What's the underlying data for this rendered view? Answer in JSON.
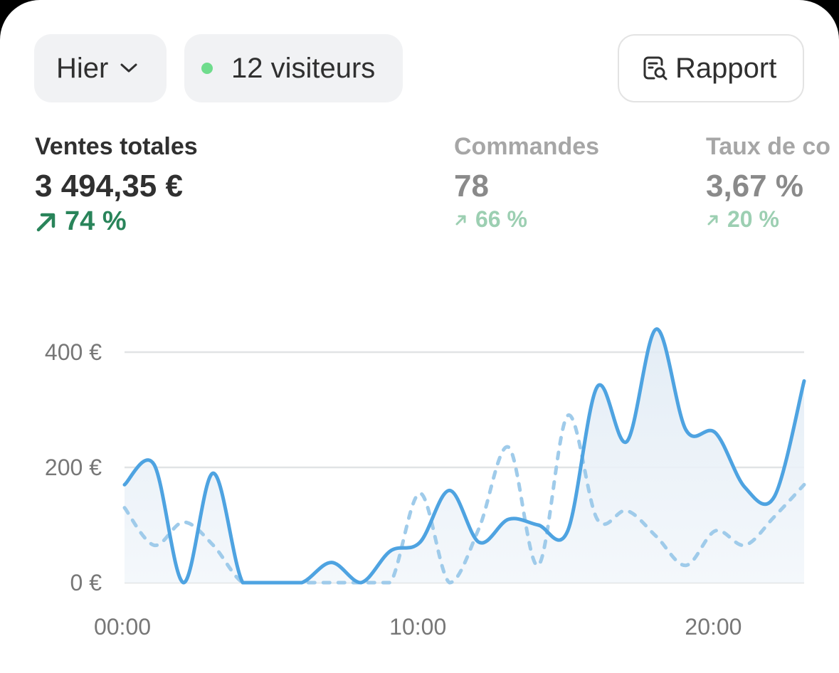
{
  "filters": {
    "period_label": "Hier",
    "visitors_label": "12 visiteurs",
    "live_dot_color": "#6fdc8c"
  },
  "report_button": {
    "label": "Rapport",
    "icon": "report-search-icon"
  },
  "metrics": [
    {
      "label": "Ventes totales",
      "value": "3 494,35 €",
      "delta": "74 %",
      "trend": "up",
      "active": true
    },
    {
      "label": "Commandes",
      "value": "78",
      "delta": "66 %",
      "trend": "up",
      "active": false
    },
    {
      "label": "Taux de co",
      "value": "3,67 %",
      "delta": "20 %",
      "trend": "up",
      "active": false
    }
  ],
  "colors": {
    "primary_line": "#4ea3e1",
    "comparison_line": "#9fcbea",
    "positive": "#29845a",
    "positive_muted": "#9ccfb2",
    "grid": "#e1e3e5"
  },
  "chart_data": {
    "type": "line",
    "x_tick_labels": [
      "00:00",
      "10:00",
      "20:00"
    ],
    "y_tick_labels": [
      "0 €",
      "200 €",
      "400 €"
    ],
    "ylim": [
      0,
      400
    ],
    "grid": true,
    "x": [
      0,
      1,
      2,
      3,
      4,
      5,
      6,
      7,
      8,
      9,
      10,
      11,
      12,
      13,
      14,
      15,
      16,
      17,
      18,
      19,
      20,
      21,
      22,
      23
    ],
    "series": [
      {
        "style": "solid",
        "values": [
          170,
          205,
          0,
          190,
          0,
          0,
          0,
          35,
          0,
          55,
          70,
          160,
          70,
          110,
          100,
          90,
          340,
          245,
          440,
          265,
          260,
          165,
          150,
          350
        ]
      },
      {
        "style": "dashed",
        "values": [
          130,
          65,
          105,
          65,
          0,
          0,
          0,
          0,
          0,
          0,
          155,
          0,
          95,
          235,
          30,
          290,
          110,
          125,
          80,
          30,
          90,
          65,
          115,
          170
        ]
      }
    ]
  }
}
